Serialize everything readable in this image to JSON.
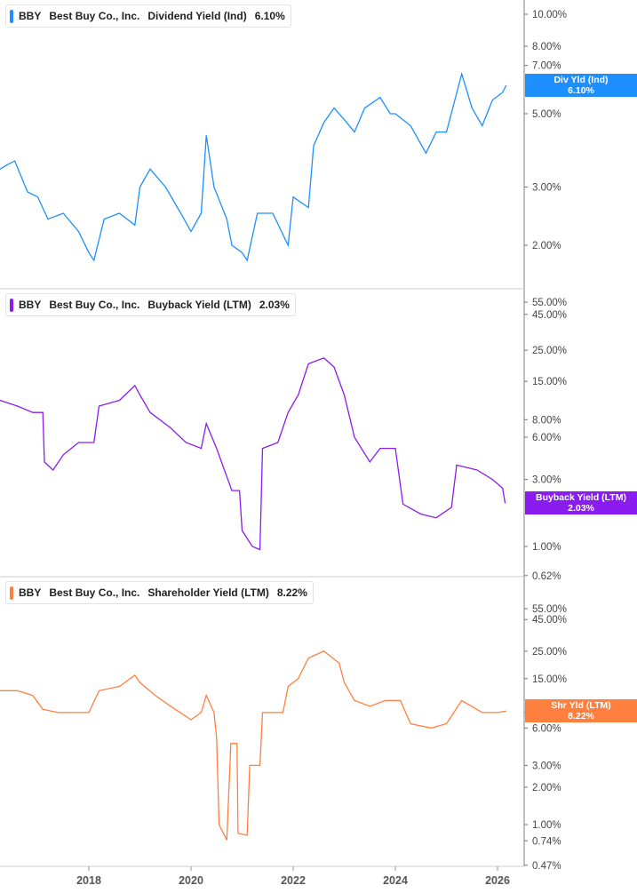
{
  "chart_data": [
    {
      "type": "line",
      "ticker": "BBY",
      "company": "Best Buy Co., Inc.",
      "metric": "Dividend Yield (Ind)",
      "current": "6.10%",
      "badge": [
        "Div Yld (Ind)",
        "6.10%"
      ],
      "color": "#1e8fff",
      "yscale": "log",
      "yticks": [
        "10.00%",
        "8.00%",
        "7.00%",
        "5.00%",
        "3.00%",
        "2.00%"
      ],
      "ytick_values": [
        10,
        8,
        7,
        5,
        3,
        2
      ],
      "points": [
        [
          2016.26,
          3.4
        ],
        [
          2016.4,
          3.5
        ],
        [
          2016.55,
          3.6
        ],
        [
          2016.8,
          2.9
        ],
        [
          2017.0,
          2.8
        ],
        [
          2017.2,
          2.4
        ],
        [
          2017.5,
          2.5
        ],
        [
          2017.8,
          2.2
        ],
        [
          2018.0,
          1.9
        ],
        [
          2018.1,
          1.8
        ],
        [
          2018.3,
          2.4
        ],
        [
          2018.6,
          2.5
        ],
        [
          2018.9,
          2.3
        ],
        [
          2019.0,
          3.0
        ],
        [
          2019.2,
          3.4
        ],
        [
          2019.5,
          3.0
        ],
        [
          2019.8,
          2.5
        ],
        [
          2020.0,
          2.2
        ],
        [
          2020.2,
          2.5
        ],
        [
          2020.3,
          4.3
        ],
        [
          2020.45,
          3.0
        ],
        [
          2020.7,
          2.4
        ],
        [
          2020.8,
          2.0
        ],
        [
          2021.0,
          1.9
        ],
        [
          2021.1,
          1.8
        ],
        [
          2021.3,
          2.5
        ],
        [
          2021.6,
          2.5
        ],
        [
          2021.9,
          2.0
        ],
        [
          2022.0,
          2.8
        ],
        [
          2022.3,
          2.6
        ],
        [
          2022.4,
          4.0
        ],
        [
          2022.6,
          4.7
        ],
        [
          2022.8,
          5.2
        ],
        [
          2023.0,
          4.8
        ],
        [
          2023.2,
          4.4
        ],
        [
          2023.4,
          5.2
        ],
        [
          2023.7,
          5.6
        ],
        [
          2023.9,
          5.0
        ],
        [
          2024.0,
          5.0
        ],
        [
          2024.3,
          4.6
        ],
        [
          2024.6,
          3.8
        ],
        [
          2024.8,
          4.4
        ],
        [
          2025.0,
          4.4
        ],
        [
          2025.3,
          6.6
        ],
        [
          2025.5,
          5.2
        ],
        [
          2025.7,
          4.6
        ],
        [
          2025.9,
          5.5
        ],
        [
          2026.1,
          5.8
        ],
        [
          2026.17,
          6.1
        ]
      ]
    },
    {
      "type": "line",
      "ticker": "BBY",
      "company": "Best Buy Co., Inc.",
      "metric": "Buyback Yield (LTM)",
      "current": "2.03%",
      "badge": [
        "Buyback Yield (LTM)",
        "2.03%"
      ],
      "color": "#8a1cf0",
      "yscale": "log",
      "yticks": [
        "55.00%",
        "45.00%",
        "25.00%",
        "15.00%",
        "8.00%",
        "6.00%",
        "3.00%",
        "1.00%",
        "0.62%"
      ],
      "ytick_values": [
        55,
        45,
        25,
        15,
        8,
        6,
        3,
        1,
        0.62
      ],
      "points": [
        [
          2016.26,
          11
        ],
        [
          2016.6,
          10
        ],
        [
          2016.9,
          9
        ],
        [
          2017.1,
          9
        ],
        [
          2017.13,
          4.0
        ],
        [
          2017.3,
          3.5
        ],
        [
          2017.5,
          4.5
        ],
        [
          2017.8,
          5.5
        ],
        [
          2018.1,
          5.5
        ],
        [
          2018.2,
          10
        ],
        [
          2018.6,
          11
        ],
        [
          2018.9,
          14
        ],
        [
          2019.0,
          12
        ],
        [
          2019.2,
          9
        ],
        [
          2019.6,
          7
        ],
        [
          2019.9,
          5.5
        ],
        [
          2020.2,
          5.0
        ],
        [
          2020.3,
          7.5
        ],
        [
          2020.5,
          5
        ],
        [
          2020.8,
          2.5
        ],
        [
          2020.95,
          2.5
        ],
        [
          2021.0,
          1.3
        ],
        [
          2021.2,
          1.0
        ],
        [
          2021.35,
          0.95
        ],
        [
          2021.4,
          5.0
        ],
        [
          2021.7,
          5.5
        ],
        [
          2021.9,
          9
        ],
        [
          2022.1,
          12
        ],
        [
          2022.3,
          20
        ],
        [
          2022.6,
          22
        ],
        [
          2022.8,
          19
        ],
        [
          2023.0,
          12
        ],
        [
          2023.2,
          6
        ],
        [
          2023.5,
          4
        ],
        [
          2023.7,
          5
        ],
        [
          2024.0,
          5.0
        ],
        [
          2024.15,
          2.0
        ],
        [
          2024.5,
          1.7
        ],
        [
          2024.8,
          1.6
        ],
        [
          2025.1,
          1.9
        ],
        [
          2025.2,
          3.8
        ],
        [
          2025.6,
          3.5
        ],
        [
          2025.9,
          3.0
        ],
        [
          2026.1,
          2.6
        ],
        [
          2026.15,
          2.03
        ]
      ]
    },
    {
      "type": "line",
      "ticker": "BBY",
      "company": "Best Buy Co., Inc.",
      "metric": "Shareholder Yield (LTM)",
      "current": "8.22%",
      "badge": [
        "Shr Yld (LTM)",
        "8.22%"
      ],
      "color": "#ff7f3f",
      "yscale": "log",
      "yticks": [
        "55.00%",
        "45.00%",
        "25.00%",
        "15.00%",
        "8.00%",
        "6.00%",
        "3.00%",
        "2.00%",
        "1.00%",
        "0.74%",
        "0.47%"
      ],
      "ytick_values": [
        55,
        45,
        25,
        15,
        8,
        6,
        3,
        2,
        1,
        0.74,
        0.47
      ],
      "points": [
        [
          2016.26,
          12
        ],
        [
          2016.6,
          12
        ],
        [
          2016.9,
          11
        ],
        [
          2017.1,
          8.5
        ],
        [
          2017.4,
          8
        ],
        [
          2017.7,
          8
        ],
        [
          2018.0,
          8
        ],
        [
          2018.2,
          12
        ],
        [
          2018.6,
          13
        ],
        [
          2018.9,
          16
        ],
        [
          2019.0,
          14
        ],
        [
          2019.3,
          11
        ],
        [
          2019.6,
          9
        ],
        [
          2020.0,
          7
        ],
        [
          2020.2,
          8
        ],
        [
          2020.3,
          11
        ],
        [
          2020.45,
          8
        ],
        [
          2020.5,
          5
        ],
        [
          2020.55,
          1.0
        ],
        [
          2020.7,
          0.75
        ],
        [
          2020.78,
          4.5
        ],
        [
          2020.9,
          4.5
        ],
        [
          2020.92,
          0.85
        ],
        [
          2021.1,
          0.82
        ],
        [
          2021.15,
          3.0
        ],
        [
          2021.35,
          3.0
        ],
        [
          2021.4,
          8
        ],
        [
          2021.8,
          8
        ],
        [
          2021.9,
          13
        ],
        [
          2022.1,
          15
        ],
        [
          2022.3,
          22
        ],
        [
          2022.6,
          25
        ],
        [
          2022.9,
          20
        ],
        [
          2023.0,
          14
        ],
        [
          2023.2,
          10
        ],
        [
          2023.5,
          9
        ],
        [
          2023.8,
          10
        ],
        [
          2024.1,
          10
        ],
        [
          2024.3,
          6.5
        ],
        [
          2024.7,
          6
        ],
        [
          2025.0,
          6.5
        ],
        [
          2025.3,
          10
        ],
        [
          2025.7,
          8
        ],
        [
          2026.0,
          8
        ],
        [
          2026.17,
          8.22
        ]
      ]
    }
  ],
  "xaxis": {
    "ticks": [
      "2018",
      "2020",
      "2022",
      "2024",
      "2026"
    ],
    "values": [
      2018,
      2020,
      2022,
      2024,
      2026
    ]
  }
}
